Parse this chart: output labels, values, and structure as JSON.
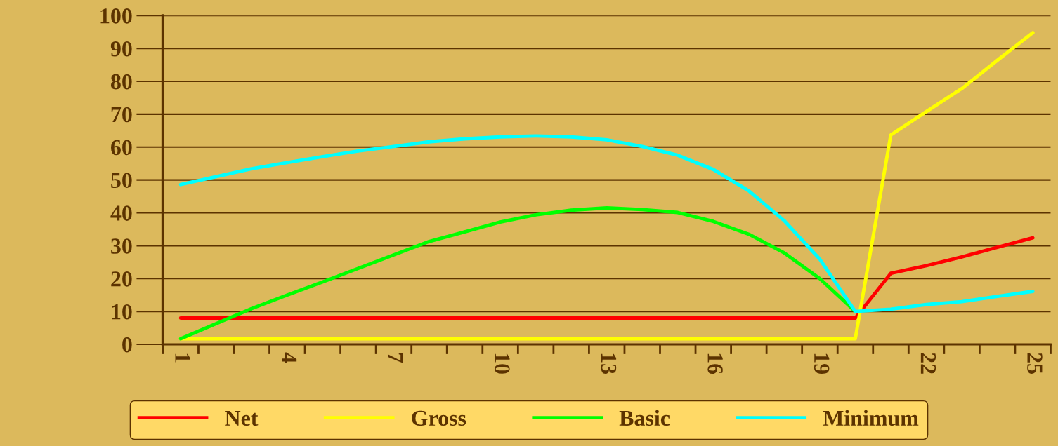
{
  "chart_data": {
    "type": "line",
    "categories": [
      "1",
      null,
      null,
      "4",
      null,
      null,
      "7",
      null,
      null,
      "10",
      null,
      null,
      "13",
      null,
      null,
      "16",
      null,
      null,
      "19",
      null,
      null,
      "22",
      null,
      null,
      "25"
    ],
    "series": [
      {
        "name": "Net",
        "color": "#ff0000",
        "values": [
          8,
          8,
          8,
          8,
          8,
          8,
          8,
          8,
          8,
          8,
          8,
          8,
          8,
          8,
          8,
          8,
          8,
          8,
          8,
          8,
          21.6,
          23.9,
          26.6,
          29.5,
          32.4
        ]
      },
      {
        "name": "Gross",
        "color": "#ffff00",
        "values": [
          1.7,
          1.7,
          1.7,
          1.7,
          1.7,
          1.7,
          1.7,
          1.7,
          1.7,
          1.7,
          1.7,
          1.7,
          1.7,
          1.7,
          1.7,
          1.7,
          1.7,
          1.7,
          1.7,
          1.7,
          63.7,
          70.8,
          77.8,
          86.4,
          94.8
        ]
      },
      {
        "name": "Basic",
        "color": "#00ff00",
        "values": [
          1.7,
          6.3,
          10.9,
          15.0,
          19.0,
          23.1,
          27.2,
          31.3,
          34.2,
          37.2,
          39.4,
          40.8,
          41.5,
          41.0,
          40.1,
          37.4,
          33.5,
          27.8,
          20.0,
          10.0,
          null,
          null,
          null,
          null,
          null
        ]
      },
      {
        "name": "Minimum",
        "color": "#00ffff",
        "values": [
          48.6,
          51.0,
          53.4,
          55.3,
          57.1,
          58.8,
          60.2,
          61.6,
          62.5,
          63.1,
          63.4,
          63.1,
          62.2,
          60.2,
          57.5,
          53.2,
          46.7,
          37.6,
          25.9,
          10.0,
          10.7,
          12.1,
          13.0,
          14.6,
          16.1
        ]
      }
    ],
    "ylim": [
      0,
      100
    ],
    "yticks": [
      0,
      10,
      20,
      30,
      40,
      50,
      60,
      70,
      80,
      90,
      100
    ],
    "grid": "y",
    "legend": "bottom"
  }
}
